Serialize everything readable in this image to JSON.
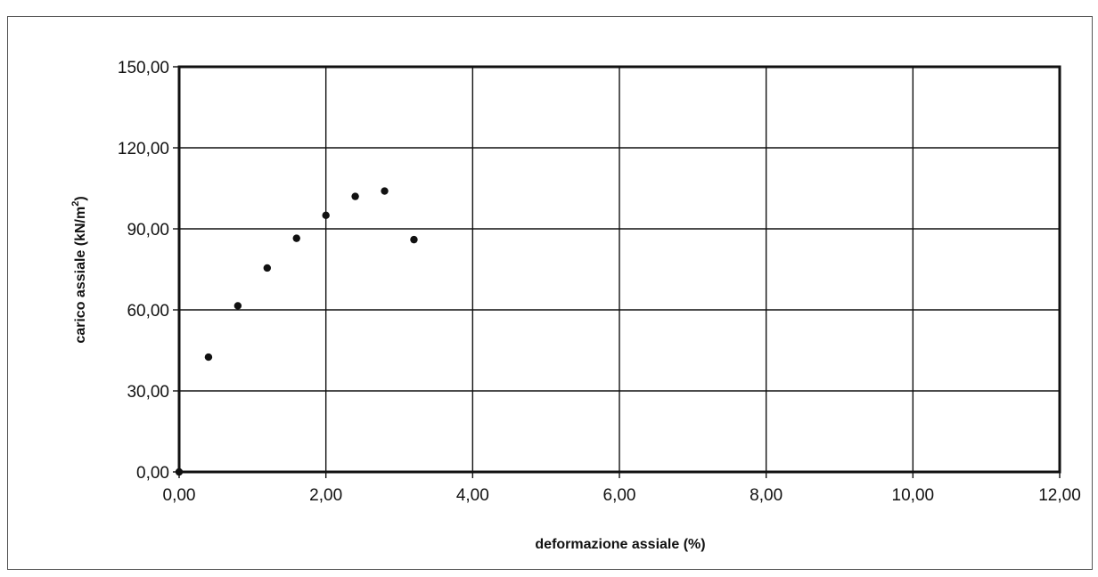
{
  "chart_data": {
    "type": "scatter",
    "title": "",
    "xlabel": "deformazione assiale (%)",
    "ylabel": "carico assiale (kN/m",
    "ylabel_sup": "2",
    "ylabel_end": ")",
    "xlim": [
      0,
      12
    ],
    "ylim": [
      0,
      150
    ],
    "x_ticks": [
      0,
      2,
      4,
      6,
      8,
      10,
      12
    ],
    "y_ticks": [
      0,
      30,
      60,
      90,
      120,
      150
    ],
    "x_tick_labels": [
      "0,00",
      "2,00",
      "4,00",
      "6,00",
      "8,00",
      "10,00",
      "12,00"
    ],
    "y_tick_labels": [
      "0,00",
      "30,00",
      "60,00",
      "90,00",
      "120,00",
      "150,00"
    ],
    "grid": true,
    "legend": "none",
    "series": [
      {
        "x": [
          0.0,
          0.4,
          0.8,
          1.2,
          1.6,
          2.0,
          2.4,
          2.8,
          3.2
        ],
        "y": [
          0.0,
          42.5,
          61.5,
          75.5,
          86.5,
          95.0,
          102.0,
          104.0,
          86.0
        ]
      }
    ]
  }
}
